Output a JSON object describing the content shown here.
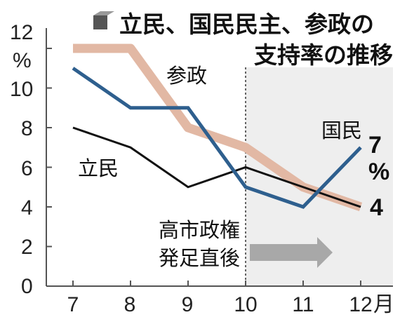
{
  "title": {
    "line1": "立民、国民民主、参政の",
    "line2": "支持率の推移"
  },
  "chart_data": {
    "type": "line",
    "title": "立民、国民民主、参政の支持率の推移",
    "x": [
      "7",
      "8",
      "9",
      "10",
      "11",
      "12"
    ],
    "x_unit": "月",
    "y_unit": "%",
    "ylim": [
      0,
      12
    ],
    "yticks": [
      "0",
      "2",
      "4",
      "6",
      "8",
      "10",
      "12"
    ],
    "series": [
      {
        "name": "参政",
        "values": [
          12,
          12,
          8,
          7,
          5,
          4
        ],
        "color": "#e2b8a4"
      },
      {
        "name": "立民",
        "values": [
          8,
          7,
          5,
          6,
          5,
          4
        ],
        "color": "#111111"
      },
      {
        "name": "国民",
        "values": [
          11,
          9,
          9,
          5,
          4,
          7
        ],
        "color": "#2e5f8e"
      }
    ],
    "end_labels": {
      "kokumin_value": "7",
      "kokumin_unit": "%",
      "shared_value": "4"
    },
    "annotation": {
      "line1": "高市政権",
      "line2": "発足直後"
    },
    "highlight_from_x": "10",
    "colors": {
      "shade": "#eeeeee",
      "arrow": "#a8a8a8",
      "axis": "#555555"
    }
  }
}
